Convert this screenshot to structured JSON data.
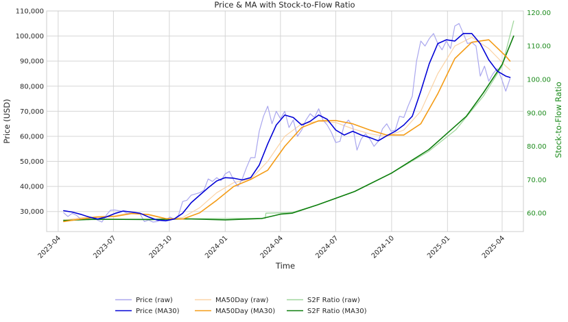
{
  "chart_data": {
    "type": "line",
    "title": "Price & MA with Stock-to-Flow Ratio",
    "xlabel": "Time",
    "ylabel_left": "Price (USD)",
    "ylabel_right": "Stock-to-Flow Ratio",
    "x_range": [
      "2023-03-13",
      "2025-05-06"
    ],
    "ylim_left": [
      22000,
      110000
    ],
    "ylim_right": [
      54.5,
      120.5
    ],
    "x_ticks": [
      "2023-04",
      "2023-07",
      "2023-10",
      "2024-01",
      "2024-04",
      "2024-07",
      "2024-10",
      "2025-01",
      "2025-04"
    ],
    "x_tick_dates": [
      "2023-04-01",
      "2023-07-01",
      "2023-10-01",
      "2024-01-01",
      "2024-04-01",
      "2024-07-01",
      "2024-10-01",
      "2025-01-01",
      "2025-04-01"
    ],
    "y_left_ticks": [
      "30,000",
      "40,000",
      "50,000",
      "60,000",
      "70,000",
      "80,000",
      "90,000",
      "100,000",
      "110,000"
    ],
    "y_left_tick_values": [
      30000,
      40000,
      50000,
      60000,
      70000,
      80000,
      90000,
      100000,
      110000
    ],
    "y_right_ticks": [
      "60.00",
      "70.00",
      "80.00",
      "90.00",
      "100.00",
      "110.00",
      "120.00"
    ],
    "y_right_tick_values": [
      60,
      70,
      80,
      90,
      100,
      110,
      120
    ],
    "grid": true,
    "legend_position": "bottom-center",
    "colors": {
      "price_raw": "#a9a6ee",
      "price_ma30": "#0000d6",
      "ma50_raw": "#fbd3a5",
      "ma50_ma30": "#f49b15",
      "s2f_raw": "#9fd69c",
      "s2f_ma30": "#0b7d0b",
      "right_axis": "#1a8a1a",
      "grid": "#d5d5d5",
      "axis_text": "#262626"
    },
    "series": [
      {
        "name": "Price (raw)",
        "axis": "left",
        "points": [
          [
            "2023-04-10",
            29500
          ],
          [
            "2023-04-17",
            28000
          ],
          [
            "2023-04-24",
            29300
          ],
          [
            "2023-05-01",
            28500
          ],
          [
            "2023-05-08",
            27000
          ],
          [
            "2023-05-15",
            26800
          ],
          [
            "2023-05-22",
            27200
          ],
          [
            "2023-05-29",
            27600
          ],
          [
            "2023-06-05",
            26500
          ],
          [
            "2023-06-12",
            25800
          ],
          [
            "2023-06-19",
            28500
          ],
          [
            "2023-06-26",
            30500
          ],
          [
            "2023-07-03",
            30600
          ],
          [
            "2023-07-10",
            30300
          ],
          [
            "2023-07-17",
            30000
          ],
          [
            "2023-07-24",
            29300
          ],
          [
            "2023-07-31",
            29300
          ],
          [
            "2023-08-07",
            29500
          ],
          [
            "2023-08-14",
            29000
          ],
          [
            "2023-08-21",
            26000
          ],
          [
            "2023-08-28",
            26600
          ],
          [
            "2023-09-04",
            25800
          ],
          [
            "2023-09-11",
            26000
          ],
          [
            "2023-09-18",
            26800
          ],
          [
            "2023-09-25",
            26500
          ],
          [
            "2023-10-02",
            27800
          ],
          [
            "2023-10-09",
            27000
          ],
          [
            "2023-10-16",
            28400
          ],
          [
            "2023-10-23",
            34000
          ],
          [
            "2023-10-30",
            34500
          ],
          [
            "2023-11-06",
            36500
          ],
          [
            "2023-11-13",
            37000
          ],
          [
            "2023-11-20",
            37500
          ],
          [
            "2023-11-27",
            38500
          ],
          [
            "2023-12-04",
            43000
          ],
          [
            "2023-12-11",
            42000
          ],
          [
            "2023-12-18",
            43500
          ],
          [
            "2023-12-25",
            42300
          ],
          [
            "2024-01-01",
            45000
          ],
          [
            "2024-01-08",
            46000
          ],
          [
            "2024-01-15",
            42500
          ],
          [
            "2024-01-22",
            40000
          ],
          [
            "2024-01-29",
            43000
          ],
          [
            "2024-02-05",
            47500
          ],
          [
            "2024-02-12",
            51500
          ],
          [
            "2024-02-19",
            51500
          ],
          [
            "2024-02-26",
            62000
          ],
          [
            "2024-03-04",
            68000
          ],
          [
            "2024-03-11",
            72000
          ],
          [
            "2024-03-18",
            65000
          ],
          [
            "2024-03-25",
            70000
          ],
          [
            "2024-04-01",
            67000
          ],
          [
            "2024-04-08",
            70000
          ],
          [
            "2024-04-15",
            63500
          ],
          [
            "2024-04-22",
            66500
          ],
          [
            "2024-04-29",
            60000
          ],
          [
            "2024-05-06",
            62500
          ],
          [
            "2024-05-13",
            66500
          ],
          [
            "2024-05-20",
            69000
          ],
          [
            "2024-05-27",
            67500
          ],
          [
            "2024-06-03",
            71000
          ],
          [
            "2024-06-10",
            66500
          ],
          [
            "2024-06-17",
            64500
          ],
          [
            "2024-06-24",
            61500
          ],
          [
            "2024-07-01",
            57500
          ],
          [
            "2024-07-08",
            58000
          ],
          [
            "2024-07-15",
            64500
          ],
          [
            "2024-07-22",
            66500
          ],
          [
            "2024-07-29",
            64000
          ],
          [
            "2024-08-05",
            54500
          ],
          [
            "2024-08-12",
            59000
          ],
          [
            "2024-08-19",
            61000
          ],
          [
            "2024-08-26",
            59000
          ],
          [
            "2024-09-02",
            56000
          ],
          [
            "2024-09-09",
            58000
          ],
          [
            "2024-09-16",
            63000
          ],
          [
            "2024-09-23",
            65000
          ],
          [
            "2024-09-30",
            62000
          ],
          [
            "2024-10-07",
            62500
          ],
          [
            "2024-10-14",
            68000
          ],
          [
            "2024-10-21",
            67500
          ],
          [
            "2024-10-28",
            72000
          ],
          [
            "2024-11-04",
            76000
          ],
          [
            "2024-11-11",
            90000
          ],
          [
            "2024-11-18",
            98000
          ],
          [
            "2024-11-25",
            96000
          ],
          [
            "2024-12-02",
            99000
          ],
          [
            "2024-12-09",
            101000
          ],
          [
            "2024-12-16",
            97000
          ],
          [
            "2024-12-23",
            94500
          ],
          [
            "2024-12-30",
            98000
          ],
          [
            "2025-01-06",
            95000
          ],
          [
            "2025-01-13",
            104000
          ],
          [
            "2025-01-20",
            105000
          ],
          [
            "2025-01-27",
            101000
          ],
          [
            "2025-02-03",
            97000
          ],
          [
            "2025-02-10",
            97500
          ],
          [
            "2025-02-17",
            96000
          ],
          [
            "2025-02-24",
            84000
          ],
          [
            "2025-03-03",
            88000
          ],
          [
            "2025-03-10",
            82000
          ],
          [
            "2025-03-17",
            85000
          ],
          [
            "2025-03-24",
            87000
          ],
          [
            "2025-03-31",
            83000
          ],
          [
            "2025-04-07",
            78000
          ],
          [
            "2025-04-14",
            83000
          ]
        ]
      },
      {
        "name": "Price (MA30)",
        "axis": "left",
        "points": [
          [
            "2023-04-10",
            30300
          ],
          [
            "2023-04-24",
            29800
          ],
          [
            "2023-05-08",
            28900
          ],
          [
            "2023-05-22",
            27800
          ],
          [
            "2023-06-05",
            27000
          ],
          [
            "2023-06-19",
            27800
          ],
          [
            "2023-07-03",
            29200
          ],
          [
            "2023-07-17",
            30200
          ],
          [
            "2023-07-31",
            29800
          ],
          [
            "2023-08-14",
            29300
          ],
          [
            "2023-08-28",
            27800
          ],
          [
            "2023-09-11",
            26600
          ],
          [
            "2023-09-25",
            26300
          ],
          [
            "2023-10-09",
            27000
          ],
          [
            "2023-10-23",
            29300
          ],
          [
            "2023-11-06",
            33500
          ],
          [
            "2023-11-20",
            36500
          ],
          [
            "2023-12-04",
            39500
          ],
          [
            "2023-12-18",
            42200
          ],
          [
            "2024-01-01",
            43500
          ],
          [
            "2024-01-15",
            43300
          ],
          [
            "2024-01-29",
            42600
          ],
          [
            "2024-02-12",
            43500
          ],
          [
            "2024-02-26",
            48500
          ],
          [
            "2024-03-11",
            57000
          ],
          [
            "2024-03-25",
            64500
          ],
          [
            "2024-04-08",
            68500
          ],
          [
            "2024-04-22",
            67500
          ],
          [
            "2024-05-06",
            64500
          ],
          [
            "2024-05-20",
            66000
          ],
          [
            "2024-06-03",
            68500
          ],
          [
            "2024-06-17",
            66800
          ],
          [
            "2024-07-01",
            62500
          ],
          [
            "2024-07-15",
            60500
          ],
          [
            "2024-07-29",
            62000
          ],
          [
            "2024-08-12",
            60500
          ],
          [
            "2024-08-26",
            59500
          ],
          [
            "2024-09-09",
            58200
          ],
          [
            "2024-09-23",
            60200
          ],
          [
            "2024-10-07",
            62000
          ],
          [
            "2024-10-21",
            64500
          ],
          [
            "2024-11-04",
            68000
          ],
          [
            "2024-11-18",
            78000
          ],
          [
            "2024-12-02",
            89000
          ],
          [
            "2024-12-16",
            97000
          ],
          [
            "2024-12-30",
            98500
          ],
          [
            "2025-01-13",
            98000
          ],
          [
            "2025-01-27",
            101000
          ],
          [
            "2025-02-10",
            101000
          ],
          [
            "2025-02-24",
            97000
          ],
          [
            "2025-03-10",
            90500
          ],
          [
            "2025-03-24",
            86000
          ],
          [
            "2025-04-07",
            84000
          ],
          [
            "2025-04-14",
            83500
          ]
        ]
      },
      {
        "name": "MA50Day (raw)",
        "axis": "left",
        "points": [
          [
            "2023-04-10",
            26500
          ],
          [
            "2023-05-08",
            27500
          ],
          [
            "2023-06-05",
            28000
          ],
          [
            "2023-07-03",
            28300
          ],
          [
            "2023-07-31",
            29600
          ],
          [
            "2023-08-28",
            28600
          ],
          [
            "2023-09-25",
            27000
          ],
          [
            "2023-10-23",
            27600
          ],
          [
            "2023-11-20",
            31500
          ],
          [
            "2023-12-18",
            37500
          ],
          [
            "2024-01-15",
            41500
          ],
          [
            "2024-02-12",
            43000
          ],
          [
            "2024-03-11",
            50000
          ],
          [
            "2024-04-08",
            60000
          ],
          [
            "2024-05-06",
            65000
          ],
          [
            "2024-06-03",
            66000
          ],
          [
            "2024-07-01",
            65500
          ],
          [
            "2024-07-29",
            63000
          ],
          [
            "2024-08-26",
            61000
          ],
          [
            "2024-09-23",
            60000
          ],
          [
            "2024-10-21",
            62500
          ],
          [
            "2024-11-18",
            70000
          ],
          [
            "2024-12-16",
            85000
          ],
          [
            "2025-01-13",
            96000
          ],
          [
            "2025-02-10",
            99500
          ],
          [
            "2025-03-10",
            95000
          ],
          [
            "2025-04-07",
            88000
          ],
          [
            "2025-04-14",
            86500
          ]
        ]
      },
      {
        "name": "MA50Day (MA30)",
        "axis": "left",
        "points": [
          [
            "2023-04-10",
            26000
          ],
          [
            "2023-05-08",
            27000
          ],
          [
            "2023-06-05",
            27800
          ],
          [
            "2023-07-03",
            28000
          ],
          [
            "2023-07-31",
            29200
          ],
          [
            "2023-08-28",
            28800
          ],
          [
            "2023-09-25",
            27200
          ],
          [
            "2023-10-23",
            27000
          ],
          [
            "2023-11-20",
            29500
          ],
          [
            "2023-12-18",
            34500
          ],
          [
            "2024-01-15",
            40000
          ],
          [
            "2024-02-12",
            42800
          ],
          [
            "2024-03-11",
            46500
          ],
          [
            "2024-04-08",
            56000
          ],
          [
            "2024-05-06",
            63500
          ],
          [
            "2024-06-03",
            66200
          ],
          [
            "2024-07-01",
            66300
          ],
          [
            "2024-07-29",
            65000
          ],
          [
            "2024-08-26",
            62500
          ],
          [
            "2024-09-23",
            60500
          ],
          [
            "2024-10-21",
            60500
          ],
          [
            "2024-11-18",
            65000
          ],
          [
            "2024-12-16",
            77000
          ],
          [
            "2025-01-13",
            91000
          ],
          [
            "2025-02-10",
            97500
          ],
          [
            "2025-03-10",
            98500
          ],
          [
            "2025-04-07",
            92000
          ],
          [
            "2025-04-14",
            90000
          ]
        ]
      },
      {
        "name": "S2F Ratio (raw)",
        "axis": "right",
        "points": [
          [
            "2023-04-10",
            58.0
          ],
          [
            "2024-03-07",
            58.5
          ],
          [
            "2024-03-08",
            60.0
          ],
          [
            "2024-04-20",
            60.2
          ],
          [
            "2024-06-01",
            62.5
          ],
          [
            "2024-08-01",
            66.5
          ],
          [
            "2024-10-01",
            72.0
          ],
          [
            "2024-12-01",
            78.5
          ],
          [
            "2025-01-15",
            85.0
          ],
          [
            "2025-03-01",
            95.0
          ],
          [
            "2025-04-01",
            104.0
          ],
          [
            "2025-04-20",
            117.5
          ]
        ]
      },
      {
        "name": "S2F Ratio (MA30)",
        "axis": "right",
        "points": [
          [
            "2023-04-10",
            57.8
          ],
          [
            "2023-06-01",
            58.2
          ],
          [
            "2023-09-01",
            58.1
          ],
          [
            "2023-11-01",
            58.3
          ],
          [
            "2024-01-01",
            58.0
          ],
          [
            "2024-03-01",
            58.4
          ],
          [
            "2024-04-01",
            59.7
          ],
          [
            "2024-04-20",
            60.0
          ],
          [
            "2024-06-01",
            62.5
          ],
          [
            "2024-08-01",
            66.5
          ],
          [
            "2024-10-01",
            72.0
          ],
          [
            "2024-12-01",
            79.0
          ],
          [
            "2025-02-01",
            89.0
          ],
          [
            "2025-03-01",
            96.0
          ],
          [
            "2025-04-01",
            104.5
          ],
          [
            "2025-04-20",
            113.0
          ]
        ]
      }
    ]
  }
}
